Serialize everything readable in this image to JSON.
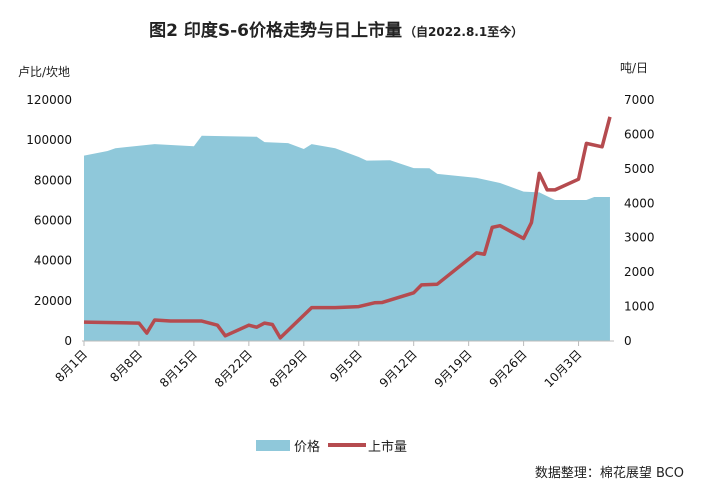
{
  "chart_data": {
    "type": "area+line",
    "title": "图2 印度S-6价格走势与日上市量",
    "subtitle": "（自2022.8.1至今）",
    "y_left_unit": "卢比/坎地",
    "y_right_unit": "吨/日",
    "y_left_ticks": [
      0,
      20000,
      40000,
      60000,
      80000,
      100000,
      120000
    ],
    "y_right_ticks": [
      0,
      1000,
      2000,
      3000,
      4000,
      5000,
      6000,
      7000
    ],
    "ylim_left": [
      0,
      120000
    ],
    "ylim_right": [
      0,
      7000
    ],
    "x_ticks": [
      "8月1日",
      "8月8日",
      "8月15日",
      "8月22日",
      "8月29日",
      "9月5日",
      "9月12日",
      "9月19日",
      "9月26日",
      "10月3日"
    ],
    "x_tick_dates": [
      "2022-08-01",
      "2022-08-08",
      "2022-08-15",
      "2022-08-22",
      "2022-08-29",
      "2022-09-05",
      "2022-09-12",
      "2022-09-19",
      "2022-09-26",
      "2022-10-03"
    ],
    "grid": false,
    "legend_placement": "bottom",
    "series": [
      {
        "name": "价格",
        "type": "area",
        "axis": "left",
        "color": "#8fc8da",
        "x": [
          "2022-08-01",
          "2022-08-04",
          "2022-08-05",
          "2022-08-10",
          "2022-08-15",
          "2022-08-16",
          "2022-08-23",
          "2022-08-24",
          "2022-08-27",
          "2022-08-29",
          "2022-08-30",
          "2022-09-02",
          "2022-09-05",
          "2022-09-06",
          "2022-09-09",
          "2022-09-12",
          "2022-09-14",
          "2022-09-15",
          "2022-09-20",
          "2022-09-23",
          "2022-09-26",
          "2022-09-28",
          "2022-09-30",
          "2022-10-04",
          "2022-10-05",
          "2022-10-07"
        ],
        "values": [
          92300,
          94600,
          96000,
          98000,
          97000,
          102200,
          101700,
          99000,
          98500,
          95600,
          98000,
          96000,
          91600,
          89800,
          90000,
          86100,
          86000,
          83200,
          81200,
          78700,
          74400,
          74000,
          70200,
          70200,
          71700,
          71700
        ]
      },
      {
        "name": "上市量",
        "type": "line",
        "axis": "right",
        "color": "#b54b4f",
        "x": [
          "2022-08-01",
          "2022-08-08",
          "2022-08-09",
          "2022-08-10",
          "2022-08-12",
          "2022-08-16",
          "2022-08-18",
          "2022-08-19",
          "2022-08-22",
          "2022-08-23",
          "2022-08-24",
          "2022-08-25",
          "2022-08-26",
          "2022-08-30",
          "2022-09-02",
          "2022-09-05",
          "2022-09-07",
          "2022-09-08",
          "2022-09-12",
          "2022-09-13",
          "2022-09-15",
          "2022-09-20",
          "2022-09-21",
          "2022-09-22",
          "2022-09-23",
          "2022-09-26",
          "2022-09-27",
          "2022-09-28",
          "2022-09-29",
          "2022-09-30",
          "2022-10-03",
          "2022-10-04",
          "2022-10-06",
          "2022-10-07"
        ],
        "values": [
          550,
          520,
          230,
          610,
          580,
          580,
          460,
          150,
          460,
          400,
          520,
          480,
          90,
          970,
          970,
          1000,
          1110,
          1120,
          1400,
          1630,
          1650,
          2560,
          2520,
          3300,
          3350,
          2980,
          3440,
          4870,
          4390,
          4390,
          4700,
          5740,
          5640,
          6510
        ]
      }
    ],
    "source": "数据整理：棉花展望 BCO"
  }
}
